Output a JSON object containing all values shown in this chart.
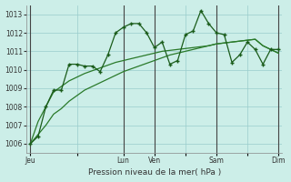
{
  "background_color": "#cceee8",
  "grid_color": "#99cccc",
  "line_color_main": "#1a5c1a",
  "line_color_trend1": "#2a7a2a",
  "line_color_trend2": "#2a7a2a",
  "ylabel_text": "Pression niveau de la mer( hPa )",
  "ylim": [
    1005.5,
    1013.5
  ],
  "yticks": [
    1006,
    1007,
    1008,
    1009,
    1010,
    1011,
    1012,
    1013
  ],
  "xtick_labels": [
    "Jeu",
    "",
    "Lun",
    "Ven",
    "",
    "Sam",
    "",
    "Dim"
  ],
  "xtick_positions": [
    0,
    6,
    12,
    16,
    20,
    24,
    28,
    32
  ],
  "vline_positions": [
    0,
    12,
    16,
    24,
    32
  ],
  "n_points": 33,
  "series1": [
    1006.0,
    1006.4,
    1008.0,
    1008.9,
    1008.9,
    1010.3,
    1010.3,
    1010.2,
    1010.2,
    1009.9,
    1010.8,
    1012.0,
    1012.3,
    1012.5,
    1012.5,
    1012.0,
    1011.2,
    1011.5,
    1010.3,
    1010.5,
    1011.9,
    1012.1,
    1013.2,
    1012.5,
    1012.0,
    1011.9,
    1010.4,
    1010.8,
    1011.5,
    1011.1,
    1010.3,
    1011.1,
    1011.1
  ],
  "trend1": [
    1006.0,
    1006.5,
    1007.0,
    1007.6,
    1007.9,
    1008.3,
    1008.6,
    1008.9,
    1009.1,
    1009.3,
    1009.5,
    1009.7,
    1009.9,
    1010.05,
    1010.2,
    1010.35,
    1010.5,
    1010.65,
    1010.8,
    1010.9,
    1011.0,
    1011.1,
    1011.2,
    1011.3,
    1011.4,
    1011.45,
    1011.5,
    1011.55,
    1011.6,
    1011.65,
    1011.3,
    1011.1,
    1010.9
  ],
  "trend2": [
    1006.0,
    1007.2,
    1008.0,
    1008.8,
    1009.1,
    1009.4,
    1009.6,
    1009.8,
    1009.95,
    1010.1,
    1010.25,
    1010.4,
    1010.5,
    1010.6,
    1010.7,
    1010.8,
    1010.9,
    1011.0,
    1011.05,
    1011.1,
    1011.15,
    1011.2,
    1011.25,
    1011.3,
    1011.4,
    1011.45,
    1011.5,
    1011.55,
    1011.6,
    1011.65,
    1011.3,
    1011.1,
    1010.9
  ]
}
